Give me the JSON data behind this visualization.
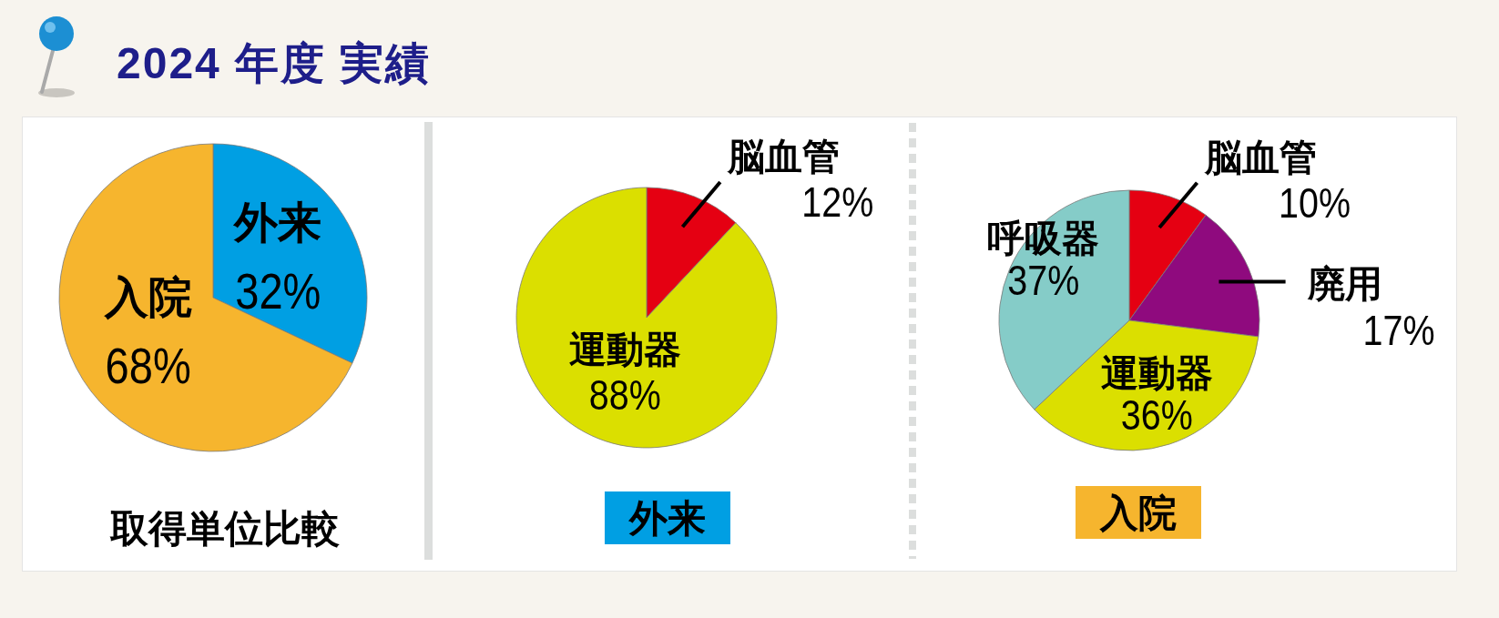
{
  "chart_data": [
    {
      "type": "pie",
      "title": "2024 年度 実績",
      "subtitle": "取得単位比較",
      "categories": [
        "外来",
        "入院"
      ],
      "values": [
        32,
        68
      ],
      "colors": [
        "#009fe3",
        "#f6b52e"
      ],
      "value_labels": [
        "32%",
        "68%"
      ]
    },
    {
      "type": "pie",
      "title": "外来",
      "categories": [
        "脳血管",
        "運動器"
      ],
      "values": [
        12,
        88
      ],
      "colors": [
        "#e50012",
        "#dbdf00"
      ],
      "value_labels": [
        "12%",
        "88%"
      ]
    },
    {
      "type": "pie",
      "title": "入院",
      "categories": [
        "脳血管",
        "廃用",
        "運動器",
        "呼吸器"
      ],
      "values": [
        10,
        17,
        36,
        37
      ],
      "colors": [
        "#e50012",
        "#8f0a7e",
        "#dbdf00",
        "#85ccc8"
      ],
      "value_labels": [
        "10%",
        "17%",
        "36%",
        "37%"
      ]
    }
  ]
}
